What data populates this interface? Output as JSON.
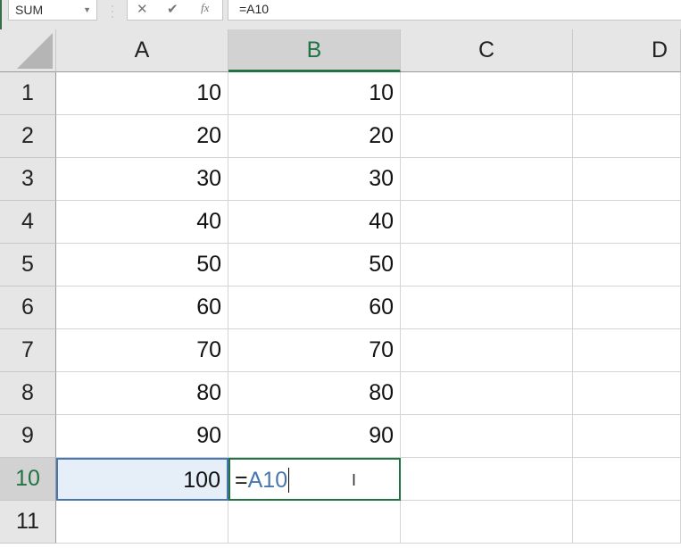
{
  "formula_bar": {
    "name_box": "SUM",
    "cancel_icon": "✕",
    "enter_icon": "✔",
    "fx_label": "fx",
    "formula": "=A10"
  },
  "columns": [
    "A",
    "B",
    "C",
    "D"
  ],
  "selected_column": "B",
  "rows": [
    {
      "n": "1",
      "A": "10",
      "B": "10"
    },
    {
      "n": "2",
      "A": "20",
      "B": "20"
    },
    {
      "n": "3",
      "A": "30",
      "B": "30"
    },
    {
      "n": "4",
      "A": "40",
      "B": "40"
    },
    {
      "n": "5",
      "A": "50",
      "B": "50"
    },
    {
      "n": "6",
      "A": "60",
      "B": "60"
    },
    {
      "n": "7",
      "A": "70",
      "B": "70"
    },
    {
      "n": "8",
      "A": "80",
      "B": "80"
    },
    {
      "n": "9",
      "A": "90",
      "B": "90"
    },
    {
      "n": "10",
      "A": "100",
      "B": "=A10"
    },
    {
      "n": "11",
      "A": "",
      "B": ""
    }
  ],
  "editing": {
    "cell": "B10",
    "equals": "=",
    "reference": "A10",
    "reference_color": "#4a76b0"
  },
  "colors": {
    "accent": "#217346",
    "reference_highlight": "#e6eef8"
  }
}
